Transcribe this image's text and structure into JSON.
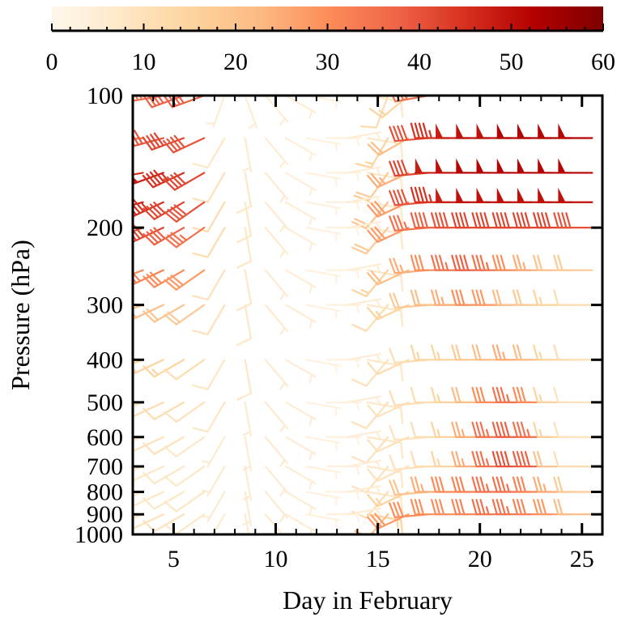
{
  "chart_data": {
    "type": "wind_barbs",
    "colorbar": {
      "position": "top",
      "min": 0,
      "max": 60,
      "ticks": [
        0,
        10,
        20,
        30,
        40,
        50,
        60
      ],
      "tick_labels": [
        "0",
        "10",
        "20",
        "30",
        "40",
        "50",
        "60"
      ],
      "colormap": [
        "#fff7ec",
        "#fee8c8",
        "#fdd49e",
        "#fdbb84",
        "#fc8d59",
        "#ef6548",
        "#d7301f",
        "#b30000",
        "#7f0000"
      ]
    },
    "xlabel": "Day in February",
    "ylabel": "Pressure (hPa)",
    "xlim": [
      3,
      26
    ],
    "x_ticks": [
      5,
      10,
      15,
      20,
      25
    ],
    "x_tick_labels": [
      "5",
      "10",
      "15",
      "20",
      "25"
    ],
    "y_scale": "log",
    "ylim": [
      1000,
      100
    ],
    "y_ticks": [
      100,
      200,
      300,
      400,
      500,
      600,
      700,
      800,
      900,
      1000
    ],
    "y_tick_labels": [
      "100",
      "200",
      "300",
      "400",
      "500",
      "600",
      "700",
      "800",
      "900",
      "1000"
    ],
    "days": [
      3.5,
      4.5,
      5.5,
      6.5,
      7.5,
      8.5,
      9.5,
      10.5,
      11.5,
      12.5,
      13.5,
      14.5,
      15.5,
      16.5,
      17.5,
      18.5,
      19.5,
      20.5,
      21.5,
      22.5,
      23.5,
      24.5,
      25.5
    ],
    "levels": [
      100,
      125,
      150,
      175,
      200,
      250,
      300,
      400,
      500,
      600,
      700,
      800,
      900
    ],
    "barbs": [
      {
        "level": 100,
        "speed": [
          25,
          35,
          38,
          38,
          5,
          5,
          5,
          5,
          3,
          3,
          5,
          8,
          12,
          15,
          35,
          40,
          45,
          48,
          48,
          50,
          50,
          50,
          52
        ],
        "direction": [
          270,
          260,
          250,
          250,
          200,
          160,
          140,
          120,
          100,
          90,
          80,
          100,
          200,
          230,
          260,
          270,
          270,
          270,
          270,
          270,
          270,
          270,
          270
        ]
      },
      {
        "level": 125,
        "speed": [
          35,
          40,
          42,
          40,
          8,
          6,
          5,
          4,
          3,
          3,
          5,
          8,
          15,
          22,
          40,
          45,
          48,
          50,
          50,
          52,
          52,
          52,
          52
        ],
        "direction": [
          265,
          255,
          250,
          245,
          210,
          170,
          140,
          120,
          100,
          90,
          80,
          100,
          210,
          240,
          265,
          270,
          270,
          270,
          270,
          270,
          270,
          270,
          270
        ]
      },
      {
        "level": 150,
        "speed": [
          45,
          48,
          45,
          42,
          10,
          8,
          6,
          4,
          3,
          3,
          5,
          8,
          18,
          25,
          42,
          48,
          50,
          52,
          52,
          52,
          52,
          52,
          52
        ],
        "direction": [
          260,
          250,
          245,
          240,
          210,
          170,
          140,
          120,
          100,
          90,
          80,
          100,
          215,
          245,
          265,
          270,
          270,
          270,
          270,
          270,
          270,
          270,
          270
        ]
      },
      {
        "level": 175,
        "speed": [
          48,
          45,
          42,
          40,
          12,
          8,
          6,
          5,
          3,
          3,
          5,
          8,
          20,
          28,
          40,
          45,
          48,
          50,
          50,
          50,
          50,
          50,
          50
        ],
        "direction": [
          255,
          245,
          240,
          235,
          210,
          170,
          140,
          120,
          100,
          90,
          80,
          100,
          220,
          245,
          265,
          270,
          270,
          270,
          270,
          270,
          270,
          270,
          270
        ]
      },
      {
        "level": 200,
        "speed": [
          40,
          42,
          38,
          35,
          12,
          8,
          6,
          5,
          3,
          3,
          5,
          8,
          18,
          28,
          35,
          38,
          40,
          42,
          42,
          42,
          42,
          42,
          40
        ],
        "direction": [
          250,
          245,
          240,
          235,
          210,
          170,
          140,
          120,
          100,
          90,
          80,
          100,
          220,
          245,
          265,
          270,
          270,
          270,
          270,
          270,
          270,
          270,
          270
        ]
      },
      {
        "level": 250,
        "speed": [
          30,
          32,
          30,
          28,
          10,
          8,
          6,
          5,
          3,
          3,
          5,
          8,
          15,
          22,
          25,
          30,
          35,
          38,
          35,
          30,
          25,
          20,
          18
        ],
        "direction": [
          250,
          245,
          240,
          235,
          210,
          170,
          140,
          120,
          100,
          90,
          80,
          100,
          220,
          245,
          265,
          270,
          270,
          270,
          270,
          270,
          270,
          270,
          270
        ]
      },
      {
        "level": 300,
        "speed": [
          20,
          22,
          20,
          18,
          10,
          8,
          6,
          5,
          3,
          3,
          5,
          8,
          12,
          15,
          18,
          22,
          25,
          30,
          28,
          22,
          18,
          15,
          12
        ],
        "direction": [
          250,
          245,
          240,
          235,
          210,
          170,
          140,
          120,
          100,
          90,
          80,
          100,
          220,
          245,
          265,
          270,
          270,
          270,
          270,
          270,
          270,
          270,
          270
        ]
      },
      {
        "level": 400,
        "speed": [
          15,
          15,
          15,
          12,
          8,
          8,
          6,
          5,
          3,
          3,
          5,
          8,
          10,
          12,
          12,
          15,
          15,
          18,
          22,
          25,
          22,
          15,
          12
        ],
        "direction": [
          250,
          245,
          240,
          235,
          210,
          170,
          140,
          120,
          100,
          90,
          80,
          100,
          220,
          245,
          265,
          270,
          270,
          270,
          270,
          270,
          270,
          270,
          270
        ]
      },
      {
        "level": 500,
        "speed": [
          10,
          12,
          12,
          10,
          8,
          6,
          6,
          5,
          3,
          3,
          5,
          8,
          10,
          10,
          12,
          12,
          15,
          22,
          30,
          35,
          30,
          15,
          10
        ],
        "direction": [
          250,
          245,
          240,
          235,
          210,
          170,
          140,
          120,
          100,
          90,
          80,
          100,
          220,
          245,
          265,
          270,
          270,
          270,
          270,
          270,
          270,
          270,
          270
        ]
      },
      {
        "level": 600,
        "speed": [
          8,
          10,
          10,
          8,
          6,
          6,
          6,
          5,
          3,
          3,
          5,
          8,
          10,
          10,
          10,
          12,
          15,
          25,
          35,
          38,
          35,
          15,
          10
        ],
        "direction": [
          250,
          245,
          240,
          235,
          210,
          170,
          140,
          120,
          100,
          90,
          80,
          100,
          220,
          245,
          265,
          270,
          270,
          270,
          270,
          270,
          270,
          270,
          270
        ]
      },
      {
        "level": 700,
        "speed": [
          8,
          8,
          8,
          8,
          6,
          6,
          6,
          5,
          3,
          3,
          5,
          8,
          10,
          10,
          10,
          12,
          15,
          25,
          35,
          40,
          38,
          20,
          12
        ],
        "direction": [
          250,
          245,
          240,
          235,
          210,
          170,
          140,
          120,
          100,
          90,
          80,
          100,
          220,
          245,
          265,
          270,
          270,
          270,
          270,
          270,
          270,
          270,
          270
        ]
      },
      {
        "level": 800,
        "speed": [
          8,
          8,
          8,
          8,
          6,
          6,
          6,
          5,
          3,
          3,
          5,
          8,
          12,
          15,
          20,
          25,
          30,
          32,
          35,
          35,
          32,
          25,
          18
        ],
        "direction": [
          250,
          245,
          240,
          235,
          210,
          170,
          140,
          120,
          100,
          90,
          80,
          100,
          220,
          245,
          265,
          270,
          270,
          270,
          270,
          270,
          270,
          270,
          270
        ]
      },
      {
        "level": 900,
        "speed": [
          10,
          10,
          10,
          8,
          6,
          6,
          6,
          5,
          3,
          3,
          5,
          15,
          22,
          28,
          30,
          30,
          30,
          32,
          35,
          35,
          32,
          28,
          22
        ],
        "direction": [
          250,
          245,
          240,
          235,
          210,
          170,
          140,
          120,
          100,
          90,
          80,
          100,
          220,
          245,
          265,
          270,
          270,
          270,
          270,
          270,
          270,
          270,
          270
        ]
      }
    ]
  }
}
